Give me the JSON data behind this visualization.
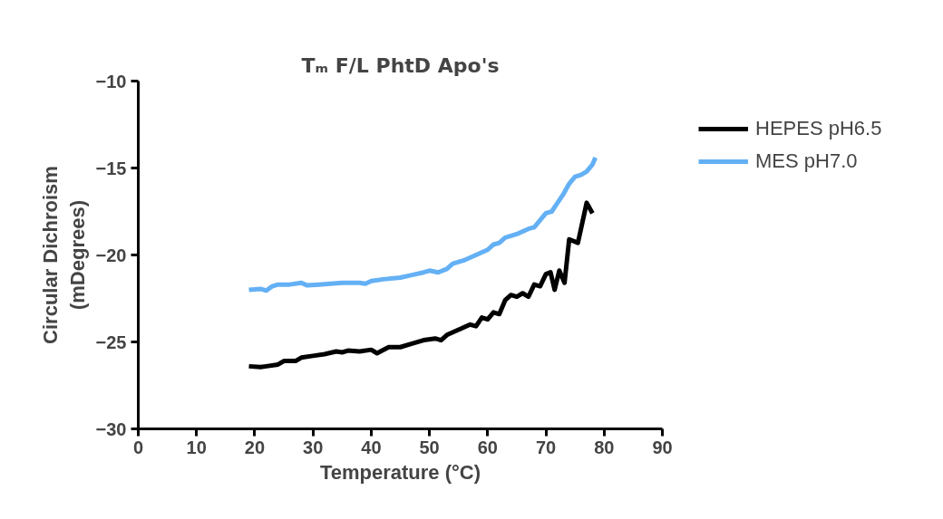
{
  "chart_data": {
    "type": "line",
    "title": "Tₘ F/L PhtD Apo's",
    "xlabel": "Temperature (°C)",
    "ylabel": "Circular Dichroism\n(mDegrees)",
    "xlim": [
      0,
      90
    ],
    "xticks": [
      0,
      10,
      20,
      30,
      40,
      50,
      60,
      70,
      80,
      90
    ],
    "ylim": [
      -30,
      -10
    ],
    "yticks": [
      -30,
      -25,
      -20,
      -15,
      -10
    ],
    "grid": false,
    "legend": "top right",
    "marker": "none",
    "line_style": "solid",
    "series": [
      {
        "name": "HEPES pH6.5",
        "color": "#000000",
        "x": [
          19,
          21,
          22,
          24,
          25,
          27,
          28,
          30,
          32,
          34,
          35,
          36,
          38,
          40,
          41,
          43,
          45,
          47,
          49,
          51,
          52,
          53,
          55,
          57,
          58,
          59,
          60,
          61,
          62,
          63,
          64,
          65,
          66,
          67,
          68,
          69,
          70,
          70.8,
          71.5,
          72.3,
          73.2,
          74,
          75.5,
          77,
          78
        ],
        "values": [
          -26.4,
          -26.45,
          -26.4,
          -26.3,
          -26.1,
          -26.1,
          -25.9,
          -25.8,
          -25.7,
          -25.55,
          -25.6,
          -25.5,
          -25.55,
          -25.45,
          -25.65,
          -25.3,
          -25.3,
          -25.1,
          -24.9,
          -24.8,
          -24.9,
          -24.6,
          -24.3,
          -24.0,
          -24.1,
          -23.6,
          -23.7,
          -23.3,
          -23.4,
          -22.6,
          -22.3,
          -22.4,
          -22.2,
          -22.4,
          -21.7,
          -21.8,
          -21.1,
          -21.0,
          -22.0,
          -20.9,
          -21.6,
          -19.1,
          -19.3,
          -17.0,
          -17.6
        ]
      },
      {
        "name": "MES pH7.0",
        "color": "#64b0f5",
        "x": [
          19,
          21,
          22,
          23,
          24,
          26,
          28,
          29,
          31,
          33,
          35,
          38,
          39,
          40,
          42,
          45,
          47,
          49,
          50,
          51.5,
          53,
          54,
          56,
          58,
          60,
          61,
          62,
          63,
          65,
          67,
          68,
          69,
          70,
          71,
          72,
          73,
          74,
          75,
          76,
          77,
          78,
          78.5
        ],
        "values": [
          -22.0,
          -21.95,
          -22.05,
          -21.8,
          -21.7,
          -21.7,
          -21.6,
          -21.75,
          -21.7,
          -21.65,
          -21.6,
          -21.6,
          -21.65,
          -21.5,
          -21.4,
          -21.3,
          -21.15,
          -21.0,
          -20.9,
          -21.0,
          -20.8,
          -20.5,
          -20.3,
          -20.0,
          -19.7,
          -19.4,
          -19.3,
          -19.0,
          -18.8,
          -18.5,
          -18.4,
          -18.0,
          -17.6,
          -17.5,
          -17.0,
          -16.5,
          -15.9,
          -15.5,
          -15.4,
          -15.2,
          -14.8,
          -14.4
        ]
      }
    ]
  }
}
